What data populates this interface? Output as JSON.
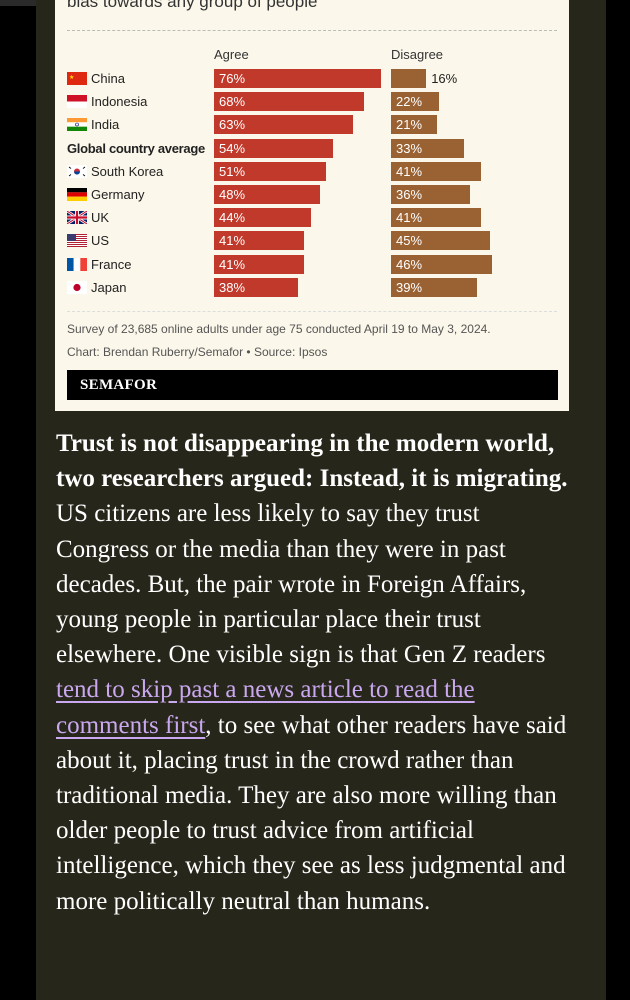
{
  "chart_card": {
    "title_fragment": "bias towards any group of people\"",
    "agree_header": "Agree",
    "disagree_header": "Disagree",
    "footnote_survey": "Survey of 23,685 online adults under age 75 conducted April 19 to May 3, 2024.",
    "footnote_credit": "Chart: Brendan Ruberry/Semafor • Source: Ipsos",
    "brand": "SEMAFOR"
  },
  "chart_data": {
    "type": "bar",
    "orientation": "horizontal",
    "categories": [
      "China",
      "Indonesia",
      "India",
      "Global country average",
      "South Korea",
      "Germany",
      "UK",
      "US",
      "France",
      "Japan"
    ],
    "series": [
      {
        "name": "Agree",
        "values": [
          76,
          68,
          63,
          54,
          51,
          48,
          44,
          41,
          41,
          38
        ],
        "labels": [
          "76%",
          "68%",
          "63%",
          "54%",
          "51%",
          "48%",
          "44%",
          "41%",
          "41%",
          "38%"
        ],
        "color": "#c0392b"
      },
      {
        "name": "Disagree",
        "values": [
          16,
          22,
          21,
          33,
          41,
          36,
          41,
          45,
          46,
          39
        ],
        "labels": [
          "16%",
          "22%",
          "21%",
          "33%",
          "41%",
          "36%",
          "41%",
          "45%",
          "46%",
          "39%"
        ],
        "color": "#9a6132"
      }
    ],
    "flags": [
      "china-flag-icon",
      "indonesia-flag-icon",
      "india-flag-icon",
      "",
      "south-korea-flag-icon",
      "germany-flag-icon",
      "uk-flag-icon",
      "us-flag-icon",
      "france-flag-icon",
      "japan-flag-icon"
    ],
    "highlight_category": "Global country average"
  },
  "article": {
    "lead_bold": "Trust is not disappearing in the modern world, two researchers argued: Instead, it is migrating.",
    "text_before_link": " US citizens are less likely to say they trust Congress or the media than they were in past decades. But, the pair wrote in Foreign Affairs, young people in particular place their trust elsewhere. One visible sign is that Gen Z readers ",
    "link_text": "tend to skip past a news article to read the comments first",
    "text_after_link": ", to see what other readers have said about it, placing trust in the crowd rather than traditional media. They are also more willing than older people to trust advice from artificial intelligence, which they see as less judgmental and more politically neutral than humans."
  },
  "colors": {
    "page_background": "#27261a",
    "card_background": "#fbf7ea",
    "link": "#c9a8ef"
  }
}
